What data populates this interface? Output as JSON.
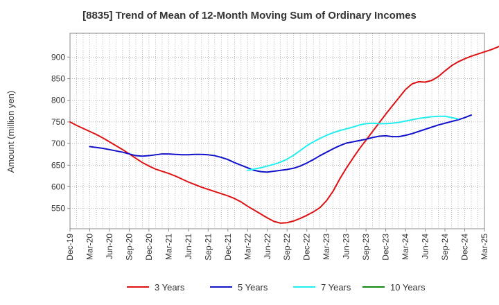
{
  "chart_data": {
    "type": "line",
    "title": "[8835]  Trend of Mean of 12-Month Moving Sum of Ordinary Incomes",
    "xlabel": "",
    "ylabel": "Amount (million yen)",
    "ylim": [
      503,
      955
    ],
    "yticks": [
      550,
      600,
      650,
      700,
      750,
      800,
      850,
      900
    ],
    "x_start": "Dec-19",
    "x_end": "Mar-25",
    "xtick_labels": [
      "Dec-19",
      "Mar-20",
      "Jun-20",
      "Sep-20",
      "Dec-20",
      "Mar-21",
      "Jun-21",
      "Sep-21",
      "Dec-21",
      "Mar-22",
      "Jun-22",
      "Sep-22",
      "Dec-22",
      "Mar-23",
      "Jun-23",
      "Sep-23",
      "Dec-23",
      "Mar-24",
      "Jun-24",
      "Sep-24",
      "Dec-24",
      "Mar-25"
    ],
    "grid": true,
    "legend_position": "bottom",
    "series": [
      {
        "name": "3 Years",
        "color": "#dd1111",
        "start_month_index": 0,
        "values": [
          750,
          742,
          735,
          728,
          721,
          713,
          704,
          695,
          686,
          676,
          666,
          656,
          648,
          641,
          636,
          631,
          625,
          618,
          611,
          605,
          599,
          594,
          589,
          584,
          579,
          573,
          565,
          555,
          546,
          537,
          528,
          520,
          516,
          517,
          521,
          527,
          534,
          542,
          552,
          568,
          590,
          618,
          643,
          666,
          688,
          708,
          728,
          748,
          768,
          787,
          806,
          825,
          838,
          843,
          842,
          846,
          855,
          868,
          880,
          889,
          896,
          902,
          907,
          912,
          917,
          923,
          931
        ]
      },
      {
        "name": "5 Years",
        "color": "#1111cc",
        "start_month_index": 3,
        "values": [
          693,
          691,
          689,
          686,
          683,
          680,
          676,
          672,
          671,
          672,
          674,
          676,
          676,
          675,
          674,
          674,
          675,
          675,
          674,
          672,
          668,
          663,
          656,
          650,
          644,
          638,
          635,
          634,
          636,
          638,
          640,
          643,
          648,
          655,
          663,
          672,
          680,
          688,
          695,
          701,
          704,
          707,
          710,
          714,
          717,
          718,
          716,
          716,
          719,
          723,
          728,
          733,
          738,
          743,
          747,
          751,
          755,
          760,
          766
        ]
      },
      {
        "name": "7 Years",
        "color": "#22eeee",
        "start_month_index": 27,
        "values": [
          638,
          641,
          644,
          648,
          652,
          657,
          664,
          673,
          684,
          695,
          704,
          712,
          719,
          725,
          730,
          734,
          738,
          743,
          746,
          747,
          746,
          746,
          747,
          749,
          752,
          755,
          758,
          760,
          762,
          763,
          763,
          760,
          757
        ]
      },
      {
        "name": "10 Years",
        "color": "#118811",
        "start_month_index": 0,
        "values": []
      }
    ]
  }
}
